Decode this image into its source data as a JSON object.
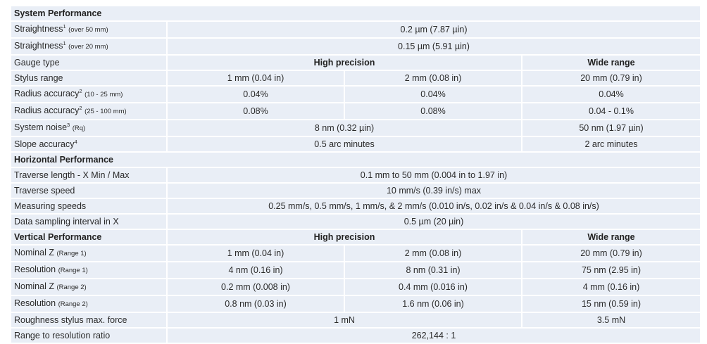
{
  "system_performance": {
    "title": "System Performance",
    "straightness_50": {
      "label": "Straightness",
      "sup": "1",
      "qual": "(over 50 mm)",
      "value": "0.2 µm (7.87 µin)"
    },
    "straightness_20": {
      "label": "Straightness",
      "sup": "1",
      "qual": "(over 20 mm)",
      "value": "0.15 µm (5.91 µin)"
    },
    "gauge_type": {
      "label": "Gauge type",
      "high_precision": "High precision",
      "wide_range": "Wide range"
    },
    "stylus_range": {
      "label": "Stylus range",
      "v1": "1 mm (0.04 in)",
      "v2": "2 mm (0.08 in)",
      "v3": "20 mm (0.79 in)"
    },
    "radius_acc_1": {
      "label": "Radius accuracy",
      "sup": "2",
      "qual": "(10 - 25 mm)",
      "v1": "0.04%",
      "v2": "0.04%",
      "v3": "0.04%"
    },
    "radius_acc_2": {
      "label": "Radius accuracy",
      "sup": "2",
      "qual": "(25 - 100 mm)",
      "v1": "0.08%",
      "v2": "0.08%",
      "v3": "0.04 - 0.1%"
    },
    "system_noise": {
      "label": "System noise",
      "sup": "3",
      "qual": "(Rq)",
      "v1": "8 nm (0.32 µin)",
      "v2": "50 nm (1.97 µin)"
    },
    "slope_accuracy": {
      "label": "Slope accuracy",
      "sup": "4",
      "v1": "0.5 arc minutes",
      "v2": "2 arc minutes"
    }
  },
  "horizontal_performance": {
    "title": "Horizontal Performance",
    "traverse_length": {
      "label": "Traverse length - X Min / Max",
      "value": "0.1 mm to 50 mm (0.004 in to 1.97 in)"
    },
    "traverse_speed": {
      "label": "Traverse speed",
      "value": "10 mm/s (0.39 in/s) max"
    },
    "measuring_speeds": {
      "label": "Measuring speeds",
      "value": "0.25 mm/s, 0.5 mm/s, 1 mm/s, & 2 mm/s (0.010 in/s, 0.02 in/s & 0.04 in/s & 0.08 in/s)"
    },
    "sampling_interval": {
      "label": "Data sampling interval in X",
      "value": "0.5 µm (20 µin)"
    }
  },
  "vertical_performance": {
    "title": "Vertical Performance",
    "high_precision": "High precision",
    "wide_range": "Wide range",
    "nominal_z_1": {
      "label": "Nominal Z",
      "qual": "(Range 1)",
      "v1": "1 mm (0.04 in)",
      "v2": "2 mm (0.08 in)",
      "v3": "20 mm (0.79 in)"
    },
    "resolution_1": {
      "label": "Resolution",
      "qual": "(Range 1)",
      "v1": "4 nm (0.16 in)",
      "v2": "8 nm (0.31 in)",
      "v3": "75 nm (2.95 in)"
    },
    "nominal_z_2": {
      "label": "Nominal Z",
      "qual": "(Range 2)",
      "v1": "0.2 mm (0.008 in)",
      "v2": "0.4 mm (0.016 in)",
      "v3": "4 mm (0.16 in)"
    },
    "resolution_2": {
      "label": "Resolution",
      "qual": "(Range 2)",
      "v1": "0.8 nm (0.03 in)",
      "v2": "1.6 nm (0.06 in)",
      "v3": "15 nm (0.59 in)"
    },
    "roughness_force": {
      "label": "Roughness stylus max. force",
      "v1": "1 mN",
      "v2": "3.5 mN"
    },
    "ratio": {
      "label": "Range to resolution ratio",
      "value": "262,144 : 1"
    }
  }
}
